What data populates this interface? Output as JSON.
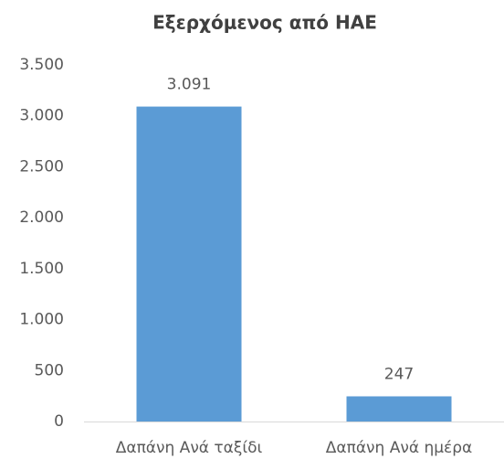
{
  "chart_data": {
    "type": "bar",
    "title": "Εξερχόμενος από ΗΑΕ",
    "categories": [
      "Δαπάνη Ανά ταξίδι",
      "Δαπάνη Ανά ημέρα"
    ],
    "values": [
      3091,
      247
    ],
    "value_labels": [
      "3.091",
      "247"
    ],
    "color": "#5b9bd5",
    "ylim": [
      0,
      3500
    ],
    "yticks": [
      0,
      500,
      {
        "value": 1000,
        "label": "1.000"
      },
      {
        "value": 1500,
        "label": "1.500"
      },
      {
        "value": 2000,
        "label": "2.000"
      },
      {
        "value": 2500,
        "label": "2.500"
      },
      {
        "value": 3000,
        "label": "3.000"
      },
      {
        "value": 3500,
        "label": "3.500"
      }
    ],
    "grid": false
  }
}
